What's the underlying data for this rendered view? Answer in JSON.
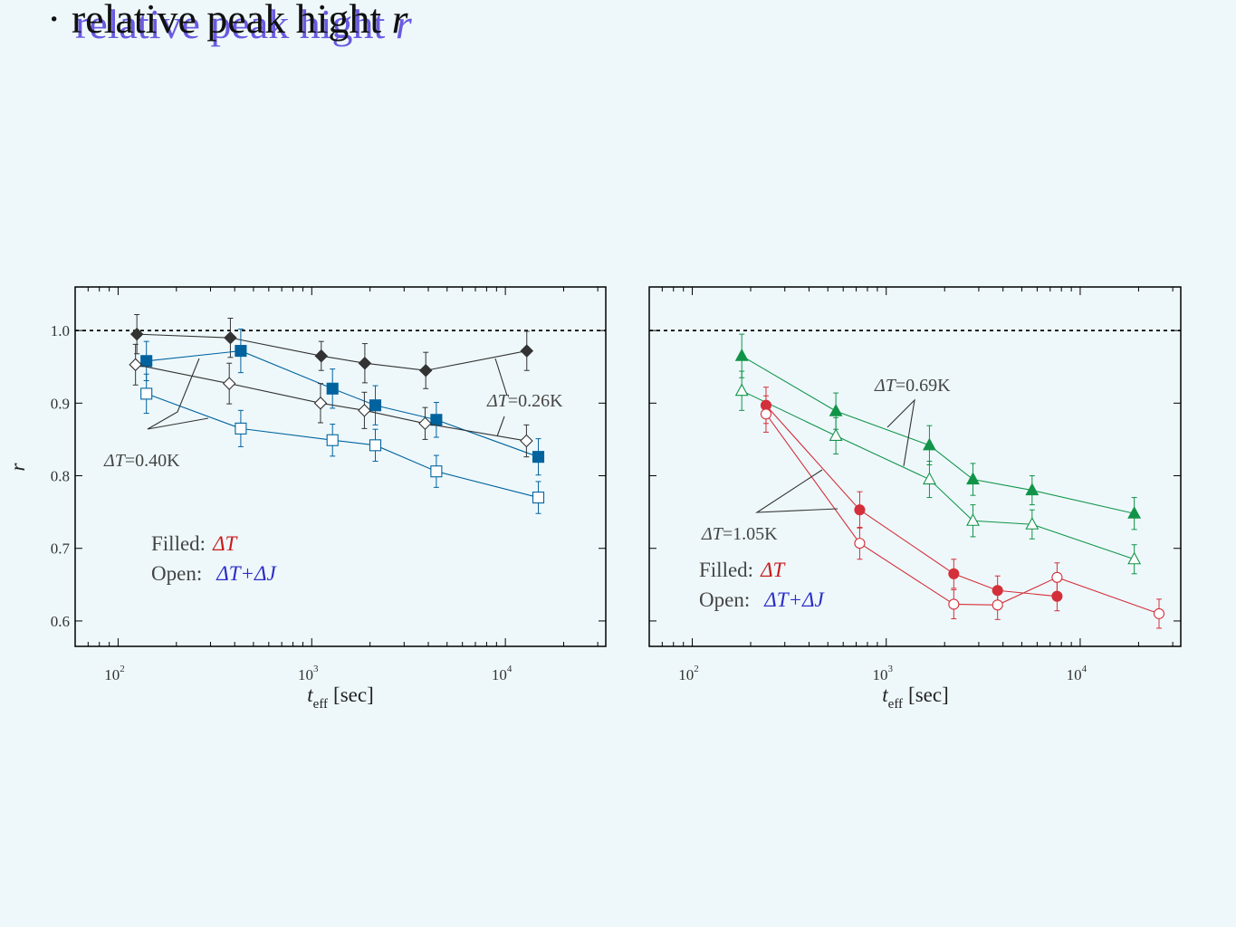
{
  "title": {
    "bullet": "·",
    "text": "relative peak hight",
    "variable": "r"
  },
  "colors": {
    "black": "#333333",
    "blue": "#00639e",
    "green": "#119448",
    "red": "#d4303a",
    "legend_red": "#c81c1c",
    "legend_blue": "#2c2cc8"
  },
  "chart_data": [
    {
      "type": "scatter",
      "panel": "left",
      "xlabel": {
        "main": "t",
        "sub": "eff",
        "unit": "[sec]"
      },
      "ylabel": "r",
      "xscale": "log",
      "xlim": [
        60,
        33000
      ],
      "ylim": [
        0.565,
        1.06
      ],
      "yticks": [
        {
          "v": 0.6,
          "label": "0.6"
        },
        {
          "v": 0.7,
          "label": "0.7"
        },
        {
          "v": 0.8,
          "label": "0.8"
        },
        {
          "v": 0.9,
          "label": "0.9"
        },
        {
          "v": 1.0,
          "label": "1.0"
        }
      ],
      "xticks": [
        {
          "v": 100,
          "base": "10",
          "exp": "2"
        },
        {
          "v": 1000,
          "base": "10",
          "exp": "3"
        },
        {
          "v": 10000,
          "base": "10",
          "exp": "4"
        }
      ],
      "reference_line": 1.0,
      "series": [
        {
          "marker": "diamond",
          "filled": true,
          "color": "#333333",
          "points": [
            {
              "x": 125,
              "y": 0.995,
              "err": 0.027
            },
            {
              "x": 380,
              "y": 0.99,
              "err": 0.027
            },
            {
              "x": 1120,
              "y": 0.965,
              "err": 0.02
            },
            {
              "x": 1880,
              "y": 0.955,
              "err": 0.027
            },
            {
              "x": 3880,
              "y": 0.945,
              "err": 0.025
            },
            {
              "x": 12900,
              "y": 0.972,
              "err": 0.027
            }
          ]
        },
        {
          "marker": "square",
          "filled": true,
          "color": "#00639e",
          "points": [
            {
              "x": 140,
              "y": 0.958,
              "err": 0.027
            },
            {
              "x": 430,
              "y": 0.972,
              "err": 0.03
            },
            {
              "x": 1280,
              "y": 0.92,
              "err": 0.027
            },
            {
              "x": 2130,
              "y": 0.897,
              "err": 0.027
            },
            {
              "x": 4400,
              "y": 0.877,
              "err": 0.024
            },
            {
              "x": 14800,
              "y": 0.826,
              "err": 0.025
            }
          ]
        },
        {
          "marker": "diamond",
          "filled": false,
          "color": "#333333",
          "points": [
            {
              "x": 123,
              "y": 0.953,
              "err": 0.028
            },
            {
              "x": 375,
              "y": 0.927,
              "err": 0.028
            },
            {
              "x": 1110,
              "y": 0.9,
              "err": 0.027
            },
            {
              "x": 1870,
              "y": 0.89,
              "err": 0.025
            },
            {
              "x": 3850,
              "y": 0.872,
              "err": 0.022
            },
            {
              "x": 12850,
              "y": 0.848,
              "err": 0.022
            }
          ]
        },
        {
          "marker": "square",
          "filled": false,
          "color": "#00639e",
          "points": [
            {
              "x": 140,
              "y": 0.913,
              "err": 0.027
            },
            {
              "x": 430,
              "y": 0.865,
              "err": 0.025
            },
            {
              "x": 1280,
              "y": 0.849,
              "err": 0.022
            },
            {
              "x": 2130,
              "y": 0.842,
              "err": 0.022
            },
            {
              "x": 4400,
              "y": 0.806,
              "err": 0.022
            },
            {
              "x": 14800,
              "y": 0.77,
              "err": 0.022
            }
          ]
        }
      ],
      "annotations": [
        {
          "pre": "Δ",
          "var": "T",
          "post": "=0.26K"
        },
        {
          "pre": "Δ",
          "var": "T",
          "post": "=0.40K"
        }
      ],
      "legend": {
        "filled_label": "Filled:",
        "filled_key": "ΔT",
        "open_label": "Open:",
        "open_key": "ΔT+ΔJ"
      }
    },
    {
      "type": "scatter",
      "panel": "right",
      "xlabel": {
        "main": "t",
        "sub": "eff",
        "unit": "[sec]"
      },
      "xscale": "log",
      "xlim": [
        60,
        33000
      ],
      "ylim": [
        0.565,
        1.06
      ],
      "yticks": [
        {
          "v": 0.6
        },
        {
          "v": 0.7
        },
        {
          "v": 0.8
        },
        {
          "v": 0.9
        },
        {
          "v": 1.0
        }
      ],
      "xticks": [
        {
          "v": 100,
          "base": "10",
          "exp": "2"
        },
        {
          "v": 1000,
          "base": "10",
          "exp": "3"
        },
        {
          "v": 10000,
          "base": "10",
          "exp": "4"
        }
      ],
      "reference_line": 1.0,
      "series": [
        {
          "marker": "triangle",
          "filled": true,
          "color": "#119448",
          "points": [
            {
              "x": 180,
              "y": 0.965,
              "err": 0.03
            },
            {
              "x": 550,
              "y": 0.889,
              "err": 0.025
            },
            {
              "x": 1670,
              "y": 0.842,
              "err": 0.027
            },
            {
              "x": 2800,
              "y": 0.795,
              "err": 0.022
            },
            {
              "x": 5650,
              "y": 0.78,
              "err": 0.02
            },
            {
              "x": 19000,
              "y": 0.748,
              "err": 0.022
            }
          ]
        },
        {
          "marker": "triangle",
          "filled": false,
          "color": "#119448",
          "points": [
            {
              "x": 180,
              "y": 0.917,
              "err": 0.027
            },
            {
              "x": 550,
              "y": 0.855,
              "err": 0.025
            },
            {
              "x": 1670,
              "y": 0.795,
              "err": 0.025
            },
            {
              "x": 2800,
              "y": 0.738,
              "err": 0.022
            },
            {
              "x": 5650,
              "y": 0.733,
              "err": 0.02
            },
            {
              "x": 19000,
              "y": 0.685,
              "err": 0.02
            }
          ]
        },
        {
          "marker": "circle",
          "filled": true,
          "color": "#d4303a",
          "points": [
            {
              "x": 240,
              "y": 0.897,
              "err": 0.025
            },
            {
              "x": 730,
              "y": 0.753,
              "err": 0.025
            },
            {
              "x": 2230,
              "y": 0.665,
              "err": 0.02
            },
            {
              "x": 3750,
              "y": 0.642,
              "err": 0.02
            },
            {
              "x": 7600,
              "y": 0.634,
              "err": 0.02
            }
          ]
        },
        {
          "marker": "circle",
          "filled": false,
          "color": "#d4303a",
          "points": [
            {
              "x": 240,
              "y": 0.885,
              "err": 0.025
            },
            {
              "x": 730,
              "y": 0.707,
              "err": 0.022
            },
            {
              "x": 2230,
              "y": 0.623,
              "err": 0.02
            },
            {
              "x": 3750,
              "y": 0.622,
              "err": 0.02
            },
            {
              "x": 7600,
              "y": 0.66,
              "err": 0.02
            },
            {
              "x": 25500,
              "y": 0.61,
              "err": 0.02
            }
          ]
        }
      ],
      "annotations": [
        {
          "pre": "Δ",
          "var": "T",
          "post": "=0.69K"
        },
        {
          "pre": "Δ",
          "var": "T",
          "post": "=1.05K"
        }
      ],
      "legend": {
        "filled_label": "Filled:",
        "filled_key": "ΔT",
        "open_label": "Open:",
        "open_key": "ΔT+ΔJ"
      }
    }
  ]
}
